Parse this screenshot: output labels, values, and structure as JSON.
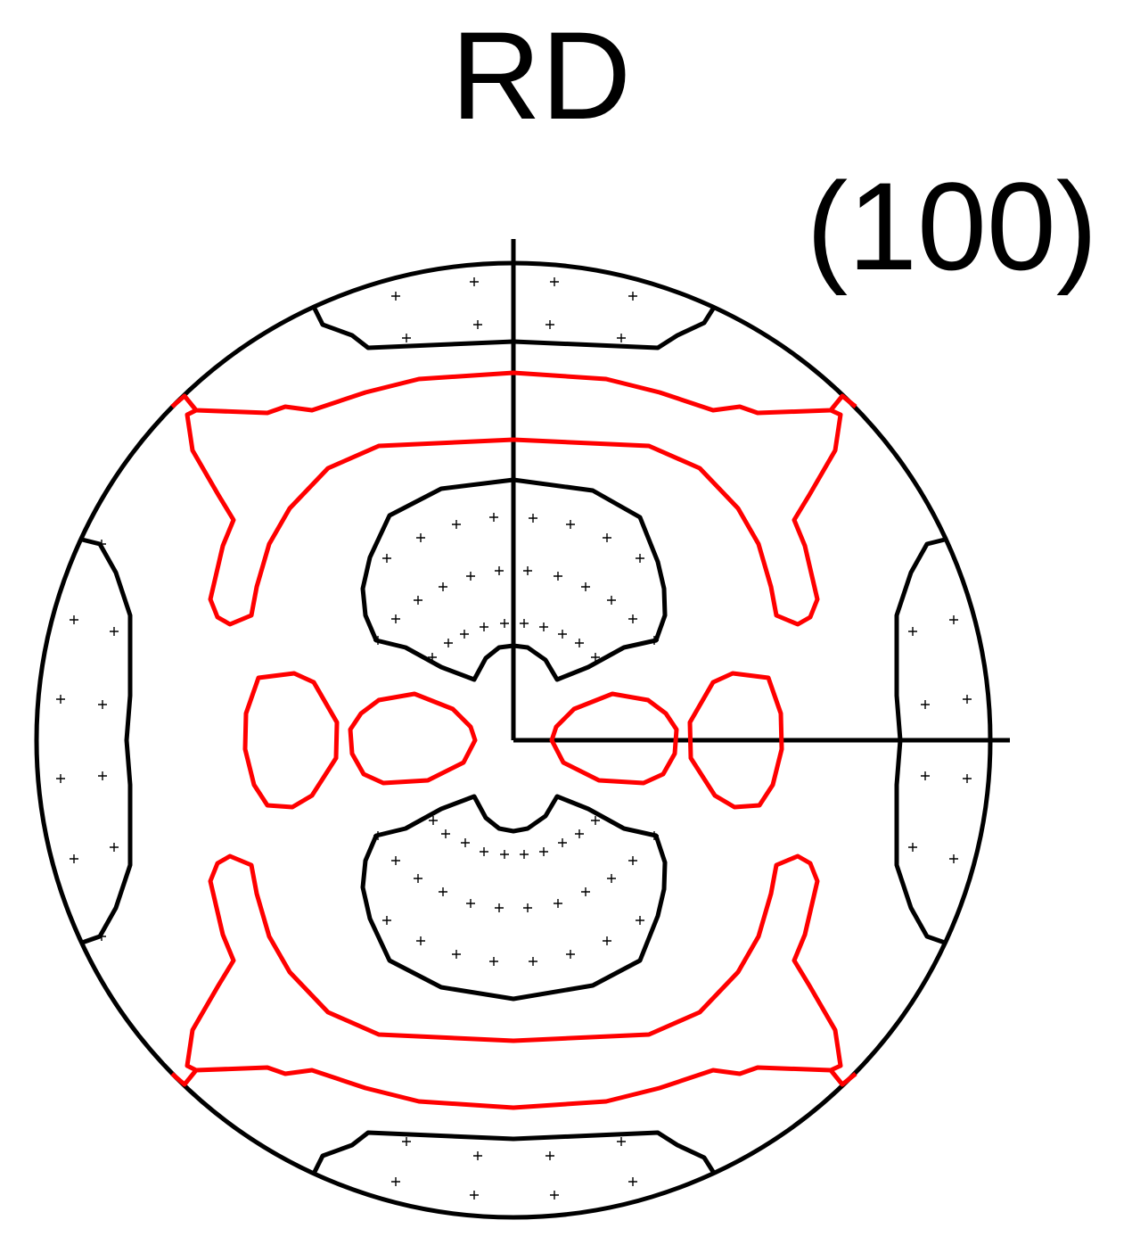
{
  "labels": {
    "direction": "RD",
    "plane": "(100)"
  },
  "colors": {
    "outline": "#000000",
    "high_density_contour": "#000000",
    "low_density_contour": "#ff0000"
  }
}
